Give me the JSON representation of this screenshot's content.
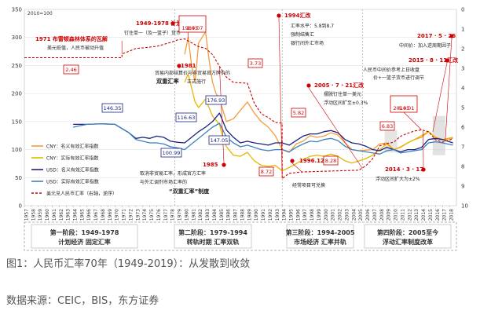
{
  "chart_data": {
    "type": "line",
    "index_note": "2010=100",
    "x_ticks": [
      "1957",
      "1958",
      "1959",
      "1960",
      "1961",
      "1962",
      "1963",
      "1964",
      "1965",
      "1966",
      "1967",
      "1968",
      "1969",
      "1970",
      "1971",
      "1972",
      "1973",
      "1974",
      "1975",
      "1976",
      "1977",
      "1978",
      "1979",
      "1980",
      "1981",
      "1982",
      "1983",
      "1984",
      "1985",
      "1986",
      "1987",
      "1988",
      "1989",
      "1990",
      "1991",
      "1992",
      "1993",
      "1994",
      "1995",
      "1996",
      "1997",
      "1998",
      "1999",
      "2000",
      "2001",
      "2002",
      "2003",
      "2004",
      "2005",
      "2006",
      "2007",
      "2008",
      "2009",
      "2010",
      "2011",
      "2012",
      "2013",
      "2014",
      "2015",
      "2016",
      "2017",
      "2018"
    ],
    "y_left": {
      "min": 0,
      "max": 350,
      "ticks": [
        "0",
        "50",
        "100",
        "150",
        "200",
        "250",
        "300",
        "350"
      ]
    },
    "y_right": {
      "reversed": true,
      "min": 0,
      "max": 10,
      "ticks": [
        "0",
        "1",
        "2",
        "3",
        "4",
        "5",
        "6",
        "7",
        "8",
        "9",
        "10"
      ]
    },
    "legend": {
      "placement": "bottom-left",
      "items": [
        "CNY：名义有效汇率指数",
        "CNY：实际有效汇率指数",
        "USD：名义有效汇率指数",
        "USD：实际有效汇率指数",
        "美元兑人民币汇率（右轴，逆序）"
      ]
    },
    "series": [
      {
        "name": "CNY：名义有效汇率指数",
        "color": "#f39c3c",
        "axis": "left",
        "x": [
          1980,
          1980.5,
          1981,
          1981.5,
          1982,
          1982.5,
          1983,
          1983.5,
          1984,
          1984.5,
          1985,
          1985.5,
          1986,
          1987,
          1988,
          1989,
          1990,
          1991,
          1992,
          1993,
          1994,
          1995,
          1996,
          1997,
          1998,
          1999,
          2000,
          2001,
          2002,
          2003,
          2004,
          2005,
          2006,
          2007,
          2008,
          2009,
          2010,
          2011,
          2012,
          2013,
          2014,
          2015,
          2016,
          2017,
          2018.5
        ],
        "y": [
          270,
          300,
          250,
          220,
          290,
          300,
          310,
          260,
          220,
          200,
          190,
          170,
          150,
          155,
          170,
          185,
          165,
          150,
          140,
          125,
          100,
          95,
          110,
          115,
          125,
          122,
          124,
          130,
          126,
          112,
          100,
          98,
          99,
          100,
          110,
          112,
          100,
          104,
          112,
          118,
          122,
          132,
          122,
          118,
          120
        ]
      },
      {
        "name": "CNY：实际有效汇率指数",
        "color": "#e8b600",
        "axis": "left",
        "x": [
          1980,
          1980.5,
          1981,
          1981.5,
          1982,
          1983,
          1984,
          1985,
          1985.5,
          1986,
          1987,
          1988,
          1989,
          1990,
          1991,
          1992,
          1993,
          1994,
          1995,
          1996,
          1997,
          1998,
          1999,
          2000,
          2001,
          2002,
          2003,
          2004,
          2005,
          2006,
          2007,
          2008,
          2009,
          2010,
          2011,
          2012,
          2013,
          2014,
          2015,
          2016,
          2017,
          2018.5
        ],
        "y": [
          220,
          235,
          210,
          185,
          175,
          190,
          160,
          145,
          120,
          105,
          90,
          88,
          95,
          80,
          72,
          70,
          72,
          62,
          68,
          75,
          82,
          88,
          90,
          88,
          92,
          88,
          80,
          76,
          80,
          84,
          90,
          100,
          110,
          100,
          105,
          112,
          118,
          125,
          132,
          122,
          118,
          122
        ]
      },
      {
        "name": "USD：名义有效汇率指数",
        "color": "#1a237e",
        "axis": "left",
        "x": [
          1964,
          1966,
          1968,
          1970,
          1972,
          1973,
          1974,
          1975,
          1976,
          1977,
          1978,
          1979,
          1980,
          1981,
          1982,
          1983,
          1984,
          1985,
          1986,
          1987,
          1988,
          1989,
          1990,
          1991,
          1992,
          1993,
          1994,
          1995,
          1996,
          1997,
          1998,
          1999,
          2000,
          2001,
          2002,
          2003,
          2004,
          2005,
          2006,
          2007,
          2008,
          2009,
          2010,
          2011,
          2012,
          2013,
          2014,
          2015,
          2016,
          2017,
          2018.5
        ],
        "y": [
          145,
          145,
          146,
          145,
          130,
          120,
          122,
          120,
          124,
          122,
          115,
          113,
          112,
          122,
          132,
          140,
          150,
          165,
          135,
          122,
          112,
          115,
          112,
          110,
          108,
          112,
          112,
          108,
          116,
          124,
          128,
          128,
          132,
          134,
          130,
          118,
          112,
          110,
          106,
          100,
          98,
          104,
          100,
          96,
          100,
          100,
          104,
          118,
          120,
          118,
          112
        ]
      },
      {
        "name": "USD：实际有效汇率指数",
        "color": "#3f7fbf",
        "axis": "left",
        "x": [
          1964,
          1966,
          1968,
          1970,
          1972,
          1973,
          1974,
          1975,
          1976,
          1977,
          1978,
          1979,
          1980,
          1981,
          1982,
          1983,
          1984,
          1985,
          1986,
          1987,
          1988,
          1989,
          1990,
          1991,
          1992,
          1993,
          1994,
          1995,
          1996,
          1997,
          1998,
          1999,
          2000,
          2001,
          2002,
          2003,
          2004,
          2005,
          2006,
          2007,
          2008,
          2009,
          2010,
          2011,
          2012,
          2013,
          2014,
          2015,
          2016,
          2017,
          2018.5
        ],
        "y": [
          140,
          145,
          146,
          145,
          130,
          118,
          115,
          112,
          112,
          110,
          105,
          103,
          100,
          110,
          120,
          130,
          140,
          147,
          122,
          112,
          105,
          108,
          104,
          100,
          98,
          100,
          100,
          96,
          104,
          110,
          115,
          114,
          118,
          120,
          116,
          106,
          100,
          98,
          96,
          94,
          92,
          98,
          100,
          94,
          96,
          98,
          100,
          112,
          114,
          112,
          108
        ]
      },
      {
        "name": "美元兑人民币汇率（右轴，逆序）",
        "color": "#cc0000",
        "axis": "right",
        "dashed": true,
        "x": [
          1957,
          1971,
          1971.01,
          1973,
          1974,
          1976,
          1978,
          1979,
          1980,
          1981,
          1982,
          1983,
          1984,
          1985,
          1986,
          1987,
          1989,
          1990,
          1991,
          1992,
          1993,
          1993.99,
          1994,
          1995,
          1996,
          1997,
          2005,
          2006,
          2007,
          2008,
          2009,
          2010,
          2011,
          2012,
          2013,
          2014,
          2015,
          2016,
          2017,
          2018.5
        ],
        "y": [
          2.46,
          2.46,
          2.27,
          1.99,
          1.96,
          1.88,
          1.68,
          1.55,
          1.5,
          1.7,
          1.9,
          1.98,
          2.3,
          2.9,
          3.45,
          3.72,
          3.76,
          4.78,
          5.32,
          5.51,
          5.76,
          5.8,
          8.62,
          8.35,
          8.31,
          8.28,
          8.19,
          7.97,
          7.6,
          6.95,
          6.83,
          6.77,
          6.46,
          6.31,
          6.19,
          6.14,
          6.23,
          6.64,
          6.76,
          6.6
        ]
      }
    ],
    "annotations": [
      "1949-1978 计划经济",
      "钉住单一（及一篮子）货币",
      "1971 布雷顿森林体系的瓦解",
      "美元贬值，人民币被动升值",
      "1980.07",
      "1.45",
      "1981",
      "贸易内部结算价与非贸易官方牌价的",
      "双重汇率",
      "正式施行",
      "1994汇改",
      "汇率水平：5.8到8.7",
      "强制结售汇",
      "银行间外汇市场",
      "2017 · 5 · 26",
      "中间价：加入逆周期因子",
      "2015 · 8 · 11汇改",
      "人民币中间价参考上日收盘价+一篮子货币进行调节",
      "2005 · 7 · 21汇改",
      "摆脱钉住单一美元",
      "浮动区间扩至±0.3%",
      "2014.01",
      "6.05",
      "6.83",
      "2014 · 3 · 17",
      "浮动区间扩大为±2%",
      "1996.12",
      "经常项目可兑换",
      "8.28",
      "1985",
      "取消非贸易汇率，形成官方汇率与外汇调剂市场汇率的",
      "“双重汇率”制度",
      "2.46",
      "146.35",
      "116.63",
      "176.93",
      "3.73",
      "5.82",
      "8.72",
      "147.05",
      "100.99"
    ],
    "periods": [
      {
        "title": "第一阶段：1949-1978",
        "subtitle": "计划经济 固定汇率"
      },
      {
        "title": "第二阶段：1979-1994",
        "subtitle": "转轨时期 汇率双轨"
      },
      {
        "title": "第三阶段：1994-2005",
        "subtitle": "市场经济 汇率并轨"
      },
      {
        "title": "第四阶段：2005至今",
        "subtitle": "浮动汇率制度改革"
      }
    ]
  },
  "caption": "图1：人民币汇率70年（1949-2019）：从发散到收敛",
  "source": "数据来源：CEIC，BIS，东方证券"
}
